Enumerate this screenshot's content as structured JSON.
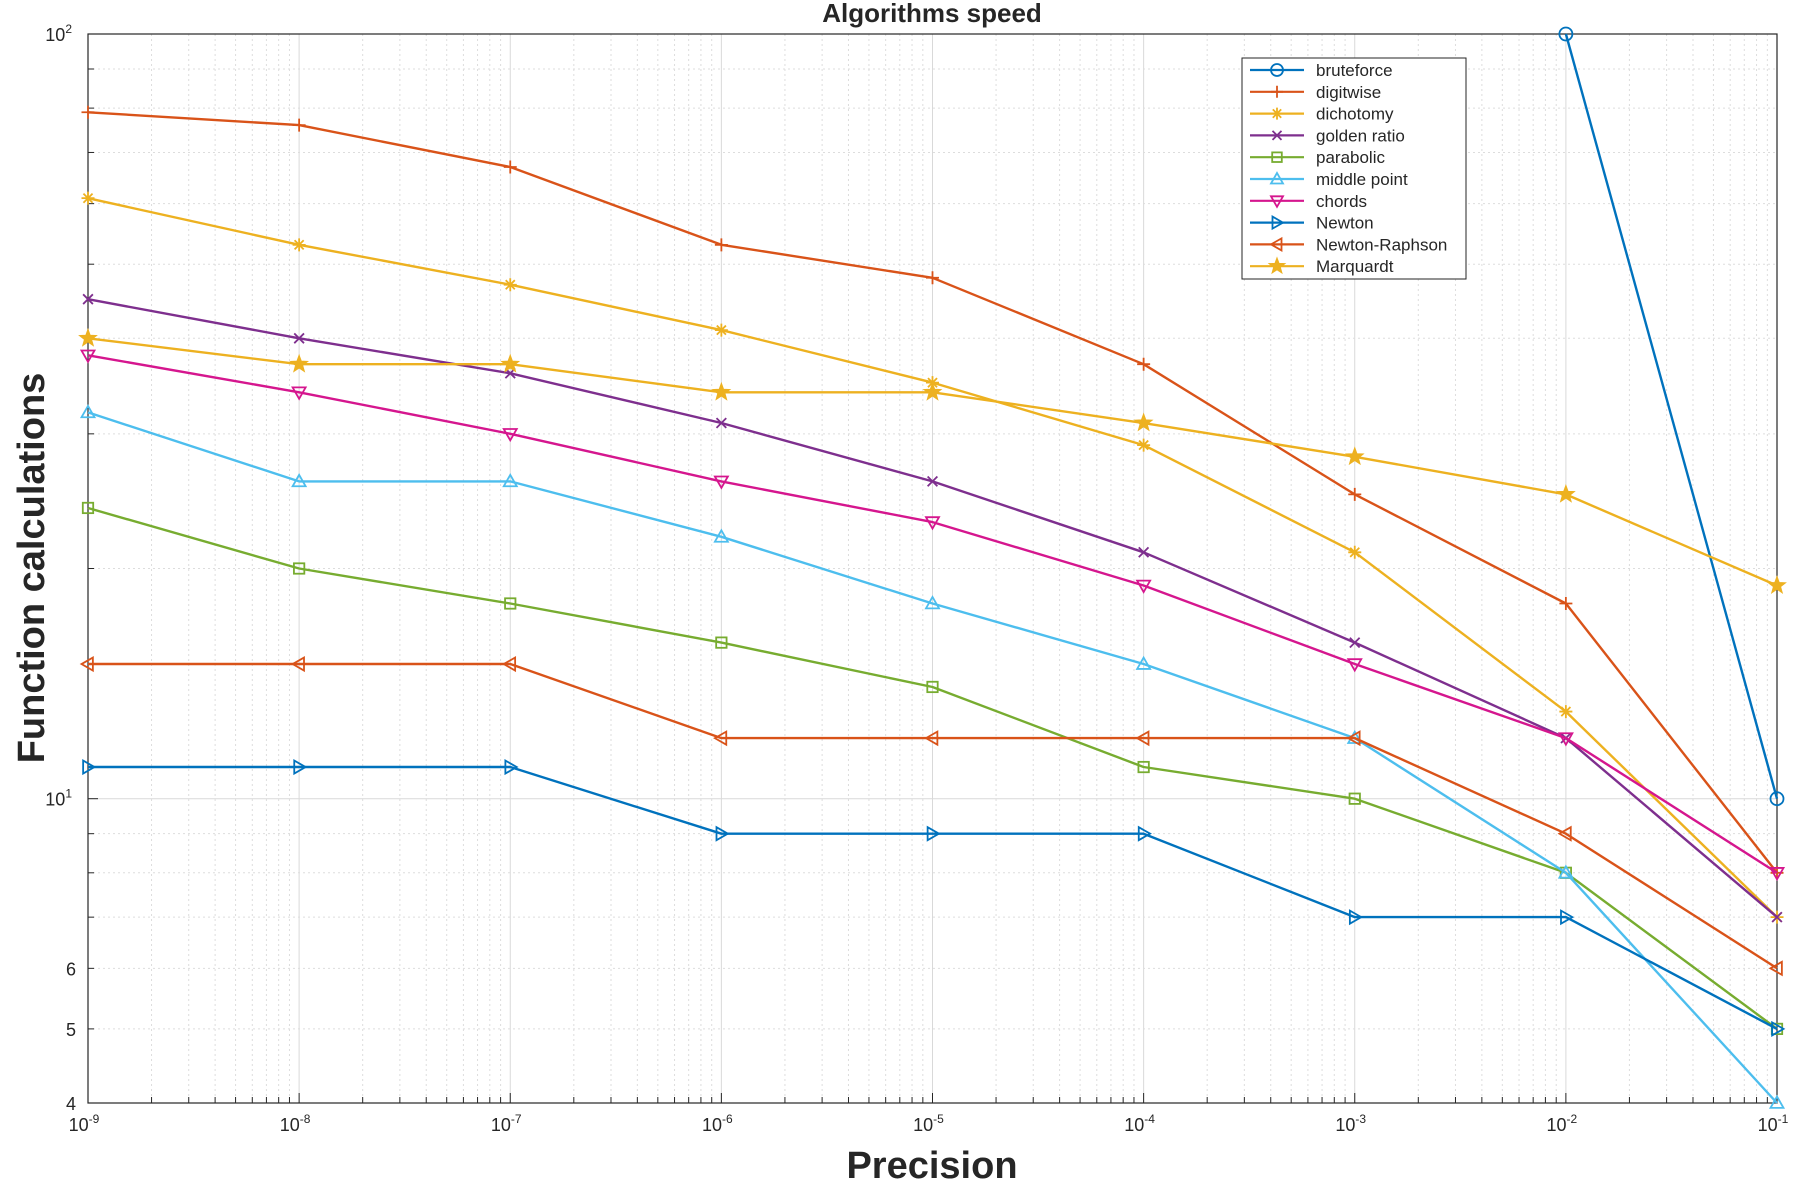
{
  "chart_data": {
    "type": "line",
    "title": "Algorithms speed",
    "xlabel": "Precision",
    "ylabel": "Function calculations",
    "xscale": "log",
    "yscale": "log",
    "xlim": [
      1e-09,
      0.1
    ],
    "ylim": [
      4,
      100
    ],
    "grid": true,
    "legend_position": "top-right",
    "x_ticks": [
      {
        "base": "10",
        "exp": "-9"
      },
      {
        "base": "10",
        "exp": "-8"
      },
      {
        "base": "10",
        "exp": "-7"
      },
      {
        "base": "10",
        "exp": "-6"
      },
      {
        "base": "10",
        "exp": "-5"
      },
      {
        "base": "10",
        "exp": "-4"
      },
      {
        "base": "10",
        "exp": "-3"
      },
      {
        "base": "10",
        "exp": "-2"
      },
      {
        "base": "10",
        "exp": "-1"
      }
    ],
    "y_ticks": [
      {
        "value": 4,
        "base": "4",
        "exp": ""
      },
      {
        "value": 5,
        "base": "5",
        "exp": ""
      },
      {
        "value": 6,
        "base": "6",
        "exp": ""
      },
      {
        "value": 10,
        "base": "10",
        "exp": "1"
      },
      {
        "value": 100,
        "base": "10",
        "exp": "2"
      }
    ],
    "series": [
      {
        "name": "bruteforce",
        "color": "#0072BD",
        "marker": "circle",
        "x": [
          0.01,
          0.1
        ],
        "values": [
          100,
          10
        ]
      },
      {
        "name": "digitwise",
        "color": "#D95319",
        "marker": "plus",
        "x": [
          1e-09,
          1e-08,
          1e-07,
          1e-06,
          1e-05,
          0.0001,
          0.001,
          0.01,
          0.1
        ],
        "values": [
          79,
          76,
          67,
          53,
          48,
          37,
          25,
          18,
          8
        ]
      },
      {
        "name": "dichotomy",
        "color": "#EDB120",
        "marker": "asterisk",
        "x": [
          1e-09,
          1e-08,
          1e-07,
          1e-06,
          1e-05,
          0.0001,
          0.001,
          0.01,
          0.1
        ],
        "values": [
          61,
          53,
          47,
          41,
          35,
          29,
          21,
          13,
          7
        ]
      },
      {
        "name": "golden ratio",
        "color": "#7E2F8E",
        "marker": "x",
        "x": [
          1e-09,
          1e-08,
          1e-07,
          1e-06,
          1e-05,
          0.0001,
          0.001,
          0.01,
          0.1
        ],
        "values": [
          45,
          40,
          36,
          31,
          26,
          21,
          16,
          12,
          7
        ]
      },
      {
        "name": "parabolic",
        "color": "#77AC30",
        "marker": "square",
        "x": [
          1e-09,
          1e-08,
          1e-07,
          1e-06,
          1e-05,
          0.0001,
          0.001,
          0.01,
          0.1
        ],
        "values": [
          24,
          20,
          18,
          16,
          14,
          11,
          10,
          8,
          5
        ]
      },
      {
        "name": "middle point",
        "color": "#4DBEEE",
        "marker": "triangle-up",
        "x": [
          1e-09,
          1e-08,
          1e-07,
          1e-06,
          1e-05,
          0.0001,
          0.001,
          0.01,
          0.1
        ],
        "values": [
          32,
          26,
          26,
          22,
          18,
          15,
          12,
          8,
          4
        ]
      },
      {
        "name": "chords",
        "color": "#D5168E",
        "marker": "triangle-down",
        "x": [
          1e-09,
          1e-08,
          1e-07,
          1e-06,
          1e-05,
          0.0001,
          0.001,
          0.01,
          0.1
        ],
        "values": [
          38,
          34,
          30,
          26,
          23,
          19,
          15,
          12,
          8
        ]
      },
      {
        "name": "Newton",
        "color": "#0072BD",
        "marker": "triangle-right",
        "x": [
          1e-09,
          1e-08,
          1e-07,
          1e-06,
          1e-05,
          0.0001,
          0.001,
          0.01,
          0.1
        ],
        "values": [
          11,
          11,
          11,
          9,
          9,
          9,
          7,
          7,
          5
        ]
      },
      {
        "name": "Newton-Raphson",
        "color": "#D95319",
        "marker": "triangle-left",
        "x": [
          1e-09,
          1e-08,
          1e-07,
          1e-06,
          1e-05,
          0.0001,
          0.001,
          0.01,
          0.1
        ],
        "values": [
          15,
          15,
          15,
          12,
          12,
          12,
          12,
          9,
          6
        ]
      },
      {
        "name": "Marquardt",
        "color": "#EDB120",
        "marker": "pentagram",
        "x": [
          1e-09,
          1e-08,
          1e-07,
          1e-06,
          1e-05,
          0.0001,
          0.001,
          0.01,
          0.1
        ],
        "values": [
          40,
          37,
          37,
          34,
          34,
          31,
          28,
          25,
          19
        ]
      }
    ]
  }
}
